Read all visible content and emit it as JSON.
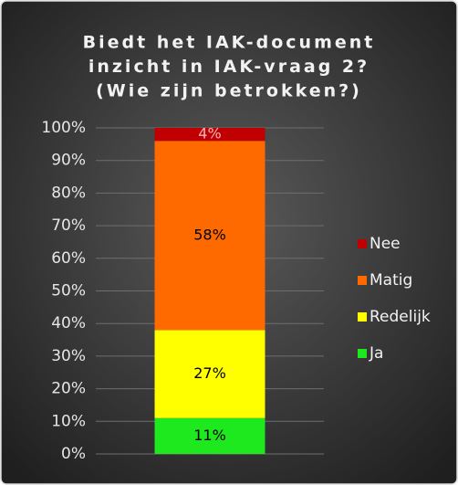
{
  "chart_data": {
    "type": "stacked_bar",
    "title": [
      "Biedt het IAK-document",
      "inzicht in IAK-vraag 2?",
      "(Wie zijn betrokken?)"
    ],
    "categories": [
      null
    ],
    "series": [
      {
        "name": "Ja",
        "color": "#1ee81e",
        "label_color": "#000000",
        "values": [
          11
        ],
        "value_labels": [
          "11%"
        ]
      },
      {
        "name": "Redelijk",
        "color": "#ffff00",
        "label_color": "#000000",
        "values": [
          27
        ],
        "value_labels": [
          "27%"
        ]
      },
      {
        "name": "Matig",
        "color": "#ff6a00",
        "label_color": "#000000",
        "values": [
          58
        ],
        "value_labels": [
          "58%"
        ]
      },
      {
        "name": "Nee",
        "color": "#c00000",
        "label_color": "#f4b6b6",
        "values": [
          4
        ],
        "value_labels": [
          "4%"
        ]
      }
    ],
    "ylim": [
      0,
      100
    ],
    "yticks": [
      {
        "value": 0,
        "label": "0%"
      },
      {
        "value": 10,
        "label": "10%"
      },
      {
        "value": 20,
        "label": "20%"
      },
      {
        "value": 30,
        "label": "30%"
      },
      {
        "value": 40,
        "label": "40%"
      },
      {
        "value": 50,
        "label": "50%"
      },
      {
        "value": 60,
        "label": "60%"
      },
      {
        "value": 70,
        "label": "70%"
      },
      {
        "value": 80,
        "label": "80%"
      },
      {
        "value": 90,
        "label": "90%"
      },
      {
        "value": 100,
        "label": "100%"
      }
    ],
    "grid": true,
    "legend": "right"
  }
}
